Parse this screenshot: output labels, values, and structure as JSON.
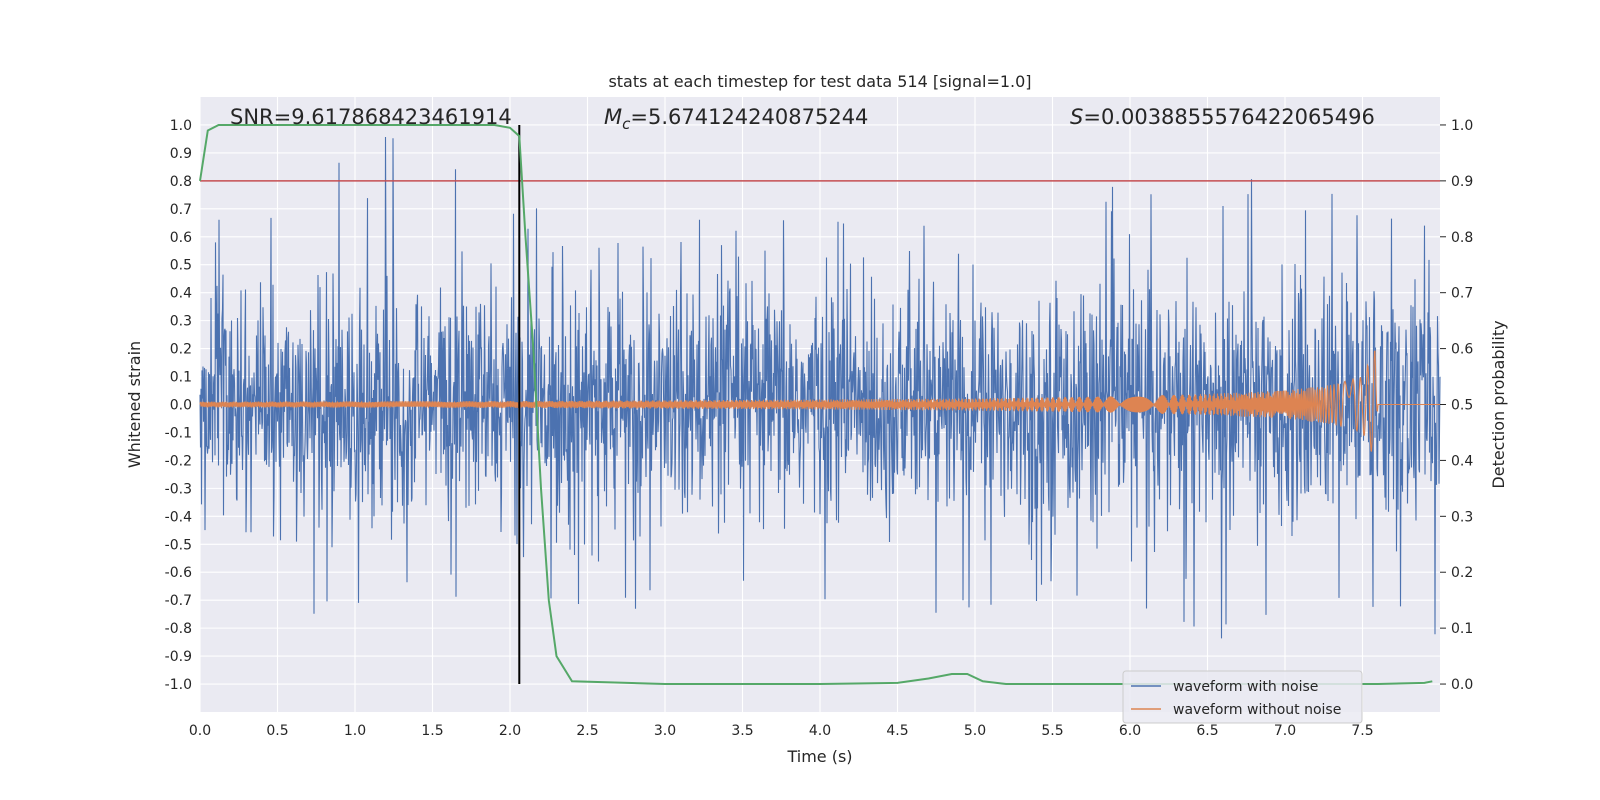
{
  "chart_data": {
    "type": "line",
    "title": "stats at each timestep for test data 514 [signal=1.0]",
    "xlabel": "Time (s)",
    "ylabel": "Whitened strain",
    "y2label": "Detection probability",
    "xlim": [
      0.0,
      8.0
    ],
    "ylim": [
      -1.1,
      1.1
    ],
    "y2lim": [
      -0.05,
      1.05
    ],
    "xticks": [
      "0.0",
      "0.5",
      "1.0",
      "1.5",
      "2.0",
      "2.5",
      "3.0",
      "3.5",
      "4.0",
      "4.5",
      "5.0",
      "5.5",
      "6.0",
      "6.5",
      "7.0",
      "7.5"
    ],
    "yticks": [
      "1.0",
      "0.9",
      "0.8",
      "0.7",
      "0.6",
      "0.5",
      "0.4",
      "0.3",
      "0.2",
      "0.1",
      "0.0",
      "-0.1",
      "-0.2",
      "-0.3",
      "-0.4",
      "-0.5",
      "-0.6",
      "-0.7",
      "-0.8",
      "-0.9",
      "-1.0"
    ],
    "y2ticks": [
      "1.0",
      "0.9",
      "0.8",
      "0.7",
      "0.6",
      "0.5",
      "0.4",
      "0.3",
      "0.2",
      "0.1",
      "0.0"
    ],
    "grid": true,
    "legend_position": "lower-right",
    "annotations": {
      "snr": "SNR=9.617868423461914",
      "mc_symbol": "M",
      "mc_sub": "c",
      "mc_value": "=5.674124240875244",
      "s_symbol": "S",
      "s_value": "=0.0038855576422065496"
    },
    "series": [
      {
        "name": "waveform with noise",
        "color": "#4c72b0",
        "envelope_x": [
          0.0,
          0.5,
          1.0,
          1.5,
          2.0,
          2.5,
          3.0,
          3.5,
          4.0,
          4.5,
          5.0,
          5.5,
          6.0,
          6.5,
          7.0,
          7.5,
          8.0
        ],
        "envelope_max": [
          0.68,
          0.69,
          0.93,
          1.0,
          0.78,
          0.55,
          0.62,
          0.74,
          0.7,
          0.73,
          0.76,
          0.72,
          0.84,
          0.78,
          0.9,
          0.76,
          0.74
        ],
        "envelope_min": [
          -0.81,
          -0.77,
          -0.78,
          -0.7,
          -0.66,
          -0.85,
          -0.72,
          -0.71,
          -0.99,
          -0.86,
          -0.75,
          -0.73,
          -0.77,
          -0.87,
          -0.72,
          -0.81,
          -0.88
        ]
      },
      {
        "name": "waveform without noise",
        "color": "#dd8452",
        "amplitude_x": [
          0.0,
          1.0,
          2.0,
          3.0,
          4.0,
          5.0,
          6.0,
          6.5,
          7.0,
          7.3,
          7.5,
          7.58,
          7.6,
          8.0
        ],
        "amplitude": [
          0.01,
          0.011,
          0.012,
          0.015,
          0.018,
          0.022,
          0.03,
          0.038,
          0.05,
          0.07,
          0.1,
          0.2,
          0.0,
          0.0
        ]
      },
      {
        "name": "Detection probability",
        "axis": "right",
        "color": "#55a868",
        "x": [
          0.0,
          0.05,
          0.12,
          0.3,
          1.0,
          1.5,
          1.9,
          2.0,
          2.06,
          2.1,
          2.15,
          2.2,
          2.25,
          2.3,
          2.4,
          3.0,
          4.0,
          4.5,
          4.7,
          4.85,
          4.95,
          5.05,
          5.2,
          6.0,
          7.0,
          7.6,
          7.9,
          7.95
        ],
        "values": [
          0.9,
          0.99,
          1.0,
          1.0,
          1.0,
          1.0,
          1.0,
          0.995,
          0.98,
          0.8,
          0.6,
          0.35,
          0.15,
          0.05,
          0.005,
          0.0,
          0.0,
          0.002,
          0.01,
          0.018,
          0.018,
          0.005,
          0.0,
          0.0,
          0.0,
          0.0,
          0.002,
          0.005
        ]
      }
    ],
    "threshold_line": {
      "y2": 0.9,
      "color": "#c44e52"
    },
    "vertical_line": {
      "x": 2.06,
      "color": "#000000"
    }
  }
}
